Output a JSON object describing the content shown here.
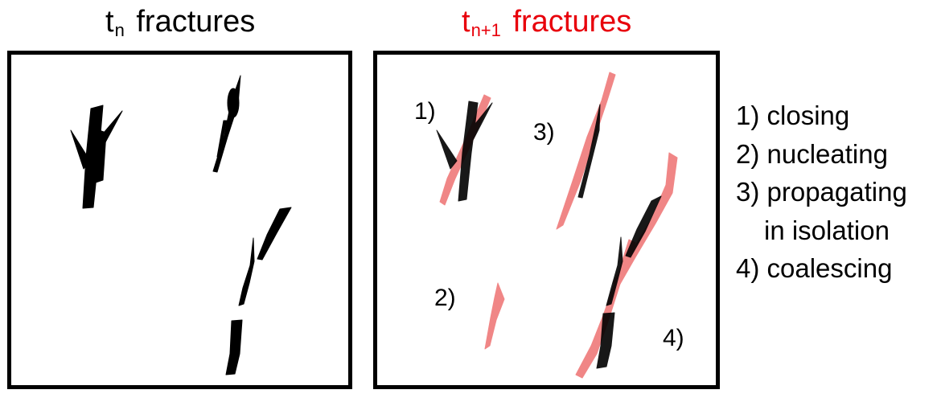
{
  "titles": {
    "left": {
      "t": "t",
      "sub": "n",
      "rest": "fractures"
    },
    "right": {
      "t": "t",
      "sub": "n+1",
      "rest": "fractures"
    }
  },
  "labels": {
    "one": "1)",
    "two": "2)",
    "three": "3)",
    "four": "4)"
  },
  "legend": {
    "items": [
      "1) closing",
      "2) nucleating",
      "3) propagating",
      "in isolation",
      "4) coalescing"
    ]
  },
  "colors": {
    "tn": "#000000",
    "tn1": "#f08080",
    "title_accent": "#e8000b"
  }
}
